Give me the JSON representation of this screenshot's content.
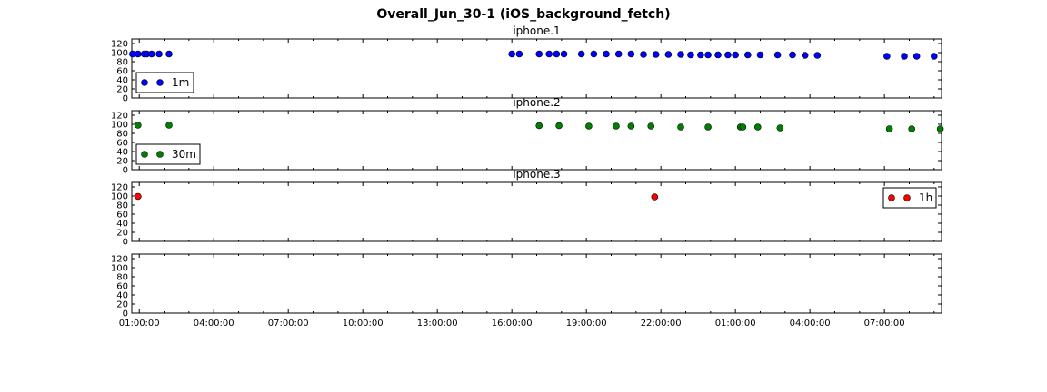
{
  "title": "Overall_Jun_30-1 (iOS_background_fetch)",
  "chart_data": [
    {
      "type": "scatter",
      "title": "iphone.1",
      "ylim": [
        0,
        130
      ],
      "yticks": [
        0,
        20,
        40,
        60,
        80,
        100,
        120
      ],
      "xlim_hours": [
        24.7,
        57.3
      ],
      "xtick_labels": [
        "01:00:00",
        "04:00:00",
        "07:00:00",
        "10:00:00",
        "13:00:00",
        "16:00:00",
        "19:00:00",
        "22:00:00",
        "01:00:00",
        "04:00:00",
        "07:00:00"
      ],
      "color": "#0000ff",
      "legend_position": "lower-left",
      "series": [
        {
          "name": "1m",
          "x": [
            24.73,
            24.95,
            25.2,
            25.3,
            25.5,
            25.8,
            26.2,
            40.0,
            40.3,
            41.1,
            41.5,
            41.8,
            42.1,
            42.8,
            43.3,
            43.8,
            44.3,
            44.8,
            45.3,
            45.8,
            46.3,
            46.8,
            47.2,
            47.6,
            47.9,
            48.3,
            48.7,
            49.0,
            49.5,
            50.0,
            50.7,
            51.3,
            51.8,
            52.3,
            55.1,
            55.8,
            56.3,
            57.0
          ],
          "y": [
            97,
            97,
            97,
            97,
            97,
            97,
            97,
            97,
            97,
            97,
            97,
            97,
            97,
            97,
            97,
            97,
            97,
            97,
            96,
            96,
            96,
            96,
            95,
            95,
            95,
            95,
            95,
            95,
            95,
            95,
            95,
            95,
            94,
            94,
            92,
            92,
            92,
            92
          ]
        }
      ]
    },
    {
      "type": "scatter",
      "title": "iphone.2",
      "ylim": [
        0,
        130
      ],
      "yticks": [
        0,
        20,
        40,
        60,
        80,
        100,
        120
      ],
      "xlim_hours": [
        24.7,
        57.3
      ],
      "xtick_labels": [
        "01:00:00",
        "04:00:00",
        "07:00:00",
        "10:00:00",
        "13:00:00",
        "16:00:00",
        "19:00:00",
        "22:00:00",
        "01:00:00",
        "04:00:00",
        "07:00:00"
      ],
      "color": "#008000",
      "legend_position": "lower-left",
      "series": [
        {
          "name": "30m",
          "x": [
            24.95,
            26.2,
            41.1,
            41.9,
            43.1,
            44.2,
            44.8,
            45.6,
            46.8,
            47.9,
            49.2,
            49.3,
            49.9,
            50.8,
            55.2,
            56.1,
            57.25
          ],
          "y": [
            98,
            98,
            97,
            97,
            96,
            96,
            96,
            96,
            94,
            94,
            94,
            94,
            94,
            92,
            90,
            90,
            90
          ]
        }
      ]
    },
    {
      "type": "scatter",
      "title": "iphone.3",
      "ylim": [
        0,
        130
      ],
      "yticks": [
        0,
        20,
        40,
        60,
        80,
        100,
        120
      ],
      "xlim_hours": [
        24.7,
        57.3
      ],
      "xtick_labels": [
        "01:00:00",
        "04:00:00",
        "07:00:00",
        "10:00:00",
        "13:00:00",
        "16:00:00",
        "19:00:00",
        "22:00:00",
        "01:00:00",
        "04:00:00",
        "07:00:00"
      ],
      "color": "#ff0000",
      "legend_position": "upper-right",
      "series": [
        {
          "name": "1h",
          "x": [
            24.95,
            45.75
          ],
          "y": [
            99,
            98
          ]
        }
      ]
    },
    {
      "type": "scatter",
      "title": "",
      "ylim": [
        0,
        130
      ],
      "yticks": [
        0,
        20,
        40,
        60,
        80,
        100,
        120
      ],
      "xlim_hours": [
        24.7,
        57.3
      ],
      "xtick_labels": [
        "01:00:00",
        "04:00:00",
        "07:00:00",
        "10:00:00",
        "13:00:00",
        "16:00:00",
        "19:00:00",
        "22:00:00",
        "01:00:00",
        "04:00:00",
        "07:00:00"
      ],
      "color": "",
      "legend_position": "",
      "series": []
    }
  ]
}
